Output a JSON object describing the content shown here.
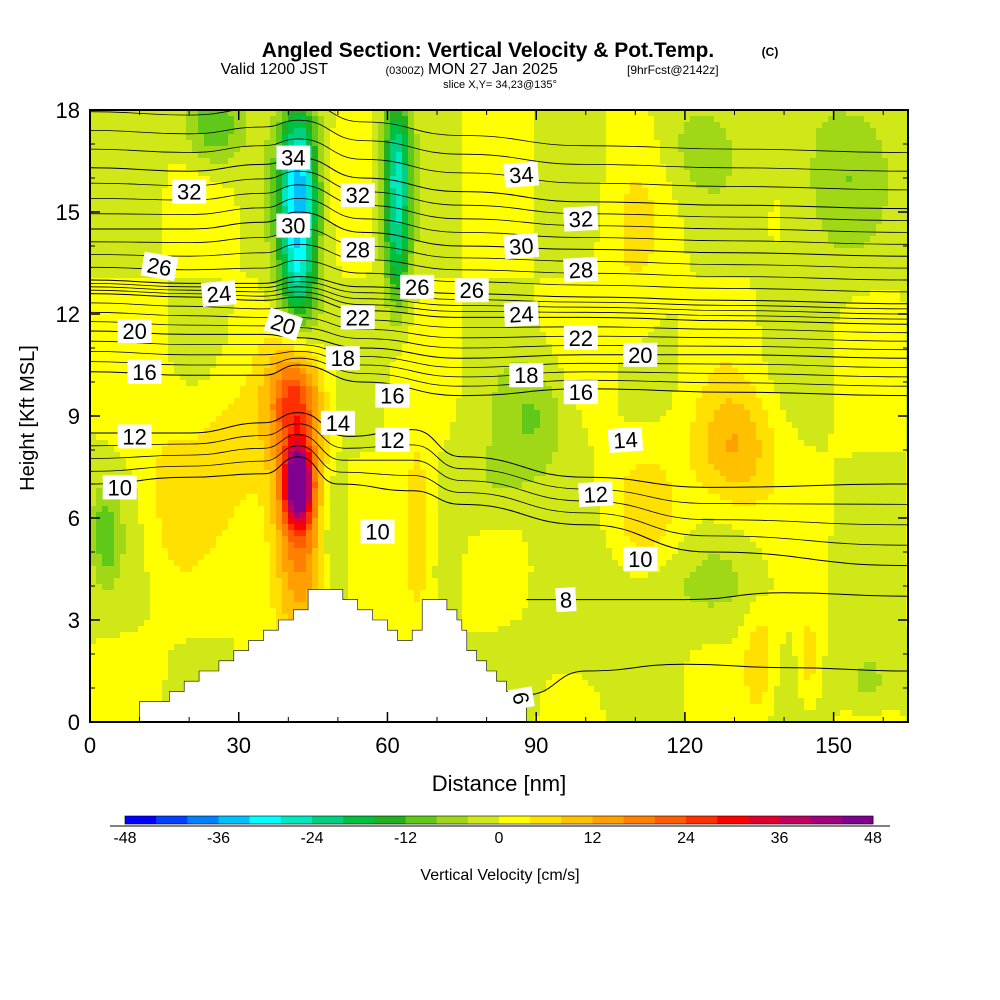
{
  "chart_data": {
    "type": "heatmap",
    "title": "Angled Section: Vertical Velocity & Pot.Temp.",
    "title_unit": "(C)",
    "subtitle": {
      "valid": "Valid 1200 JST",
      "utc": "(0300Z)",
      "date": "MON 27 Jan 2025",
      "fcst": "[9hrFcst@2142z]"
    },
    "slice_label": "slice X,Y= 34,23@135°",
    "xlabel": "Distance [nm]",
    "ylabel": "Height [Kft MSL]",
    "xlim": [
      0,
      165
    ],
    "ylim": [
      0,
      18
    ],
    "x_ticks": [
      "0",
      "30",
      "60",
      "90",
      "120",
      "150"
    ],
    "y_ticks": [
      "0",
      "3",
      "6",
      "9",
      "12",
      "15",
      "18"
    ],
    "colorbar": {
      "label": "Vertical Velocity [cm/s]",
      "ticks": [
        "-48",
        "-36",
        "-24",
        "-12",
        "0",
        "12",
        "24",
        "36",
        "48"
      ],
      "range": [
        -48,
        48
      ],
      "colors": [
        "#0000ff",
        "#0040ff",
        "#0080ff",
        "#00c0ff",
        "#00ffff",
        "#00e8c0",
        "#00d080",
        "#00c040",
        "#20b020",
        "#60c818",
        "#a0d818",
        "#d0e818",
        "#ffff00",
        "#ffe000",
        "#ffc000",
        "#ffa000",
        "#ff8000",
        "#ff5c00",
        "#ff3000",
        "#ff0000",
        "#e00030",
        "#c00060",
        "#a00080",
        "#800090"
      ]
    },
    "terrain_nm_kft": [
      [
        10,
        0.6
      ],
      [
        16,
        0.6
      ],
      [
        16,
        0.9
      ],
      [
        19,
        0.9
      ],
      [
        19,
        1.2
      ],
      [
        22,
        1.2
      ],
      [
        22,
        1.5
      ],
      [
        26,
        1.5
      ],
      [
        26,
        1.8
      ],
      [
        29,
        1.8
      ],
      [
        29,
        2.1
      ],
      [
        32,
        2.1
      ],
      [
        32,
        2.4
      ],
      [
        35,
        2.4
      ],
      [
        35,
        2.7
      ],
      [
        38,
        2.7
      ],
      [
        38,
        3.0
      ],
      [
        41,
        3.0
      ],
      [
        41,
        3.3
      ],
      [
        44,
        3.3
      ],
      [
        44,
        3.9
      ],
      [
        51,
        3.9
      ],
      [
        51,
        3.6
      ],
      [
        54,
        3.6
      ],
      [
        54,
        3.3
      ],
      [
        57,
        3.3
      ],
      [
        57,
        3.0
      ],
      [
        60,
        3.0
      ],
      [
        60,
        2.7
      ],
      [
        62,
        2.7
      ],
      [
        62,
        2.4
      ],
      [
        65,
        2.4
      ],
      [
        65,
        2.7
      ],
      [
        67,
        2.7
      ],
      [
        67,
        3.6
      ],
      [
        72,
        3.6
      ],
      [
        72,
        3.3
      ],
      [
        74,
        3.3
      ],
      [
        74,
        3.0
      ],
      [
        75,
        3.0
      ],
      [
        75,
        2.7
      ],
      [
        76,
        2.7
      ],
      [
        76,
        2.1
      ],
      [
        78,
        2.1
      ],
      [
        78,
        1.8
      ],
      [
        80,
        1.8
      ],
      [
        80,
        1.5
      ],
      [
        82,
        1.5
      ],
      [
        82,
        1.2
      ],
      [
        84,
        1.2
      ],
      [
        84,
        0.9
      ],
      [
        86,
        0.9
      ],
      [
        86,
        0.6
      ],
      [
        88,
        0.6
      ],
      [
        88,
        0
      ]
    ],
    "vv_features": [
      {
        "x": 42,
        "y": 7.0,
        "v": 48,
        "sx": 2.4,
        "sy": 1.0
      },
      {
        "x": 42,
        "y": 6.2,
        "v": 22,
        "sx": 5.5,
        "sy": 3.6
      },
      {
        "x": 41,
        "y": 9.5,
        "v": 16,
        "sx": 5,
        "sy": 1.4
      },
      {
        "x": 28,
        "y": 8.0,
        "v": 6,
        "sx": 9,
        "sy": 2.5
      },
      {
        "x": 16,
        "y": 6.5,
        "v": 5,
        "sx": 6,
        "sy": 2.5
      },
      {
        "x": 66,
        "y": 5.5,
        "v": 10,
        "sx": 3,
        "sy": 2.5
      },
      {
        "x": 42,
        "y": 15.8,
        "v": -32,
        "sx": 4.0,
        "sy": 2.4
      },
      {
        "x": 42,
        "y": 13.0,
        "v": -18,
        "sx": 4.0,
        "sy": 1.8
      },
      {
        "x": 62,
        "y": 16.3,
        "v": -24,
        "sx": 2.8,
        "sy": 2.2
      },
      {
        "x": 62,
        "y": 13.6,
        "v": -14,
        "sx": 2.6,
        "sy": 1.8
      },
      {
        "x": 25,
        "y": 17.5,
        "v": -12,
        "sx": 6,
        "sy": 1.2
      },
      {
        "x": 3,
        "y": 5.5,
        "v": -10,
        "sx": 3,
        "sy": 1.5
      },
      {
        "x": 49,
        "y": 5.5,
        "v": -10,
        "sx": 3,
        "sy": 2
      },
      {
        "x": 90,
        "y": 9.0,
        "v": -8,
        "sx": 7,
        "sy": 1.6
      },
      {
        "x": 82,
        "y": 7.0,
        "v": -5,
        "sx": 8,
        "sy": 1.5
      },
      {
        "x": 130,
        "y": 8.0,
        "v": 12,
        "sx": 8,
        "sy": 1.8
      },
      {
        "x": 112,
        "y": 6.5,
        "v": 5,
        "sx": 7,
        "sy": 1.8
      },
      {
        "x": 120,
        "y": 4.0,
        "v": -4,
        "sx": 18,
        "sy": 1.2
      },
      {
        "x": 150,
        "y": 16.0,
        "v": -7,
        "sx": 10,
        "sy": 2.5
      },
      {
        "x": 122,
        "y": 17.0,
        "v": -5,
        "sx": 8,
        "sy": 1.5
      },
      {
        "x": 135,
        "y": 1.8,
        "v": 8,
        "sx": 3,
        "sy": 1.5
      },
      {
        "x": 145,
        "y": 1.8,
        "v": 7,
        "sx": 2,
        "sy": 1.4
      },
      {
        "x": 157,
        "y": 1.2,
        "v": -7,
        "sx": 5,
        "sy": 1.0
      },
      {
        "x": 110,
        "y": 13.5,
        "v": 4,
        "sx": 6,
        "sy": 3
      },
      {
        "x": 100,
        "y": 2.0,
        "v": -2,
        "sx": 12,
        "sy": 1.5
      }
    ],
    "theta_contours": [
      {
        "label": "32",
        "xy": [
          [
            0,
            16.3
          ],
          [
            20,
            16.2
          ],
          [
            35,
            16.4
          ],
          [
            42,
            16.6
          ],
          [
            55,
            16.0
          ],
          [
            75,
            15.6
          ],
          [
            100,
            15.3
          ],
          [
            130,
            15.2
          ],
          [
            165,
            15.1
          ]
        ]
      },
      {
        "label": "30",
        "xy": [
          [
            0,
            14.5
          ],
          [
            20,
            14.5
          ],
          [
            35,
            14.7
          ],
          [
            42,
            15.0
          ],
          [
            55,
            14.4
          ],
          [
            75,
            14.0
          ],
          [
            100,
            13.9
          ],
          [
            130,
            13.8
          ],
          [
            165,
            13.7
          ]
        ]
      },
      {
        "label": "26",
        "xy": [
          [
            0,
            13.0
          ],
          [
            20,
            12.9
          ],
          [
            35,
            12.9
          ],
          [
            42,
            13.1
          ],
          [
            55,
            12.8
          ],
          [
            75,
            12.6
          ],
          [
            100,
            12.5
          ],
          [
            130,
            12.4
          ],
          [
            165,
            12.3
          ]
        ]
      },
      {
        "label": "24",
        "xy": [
          [
            0,
            12.6
          ],
          [
            20,
            12.5
          ],
          [
            35,
            12.4
          ],
          [
            42,
            12.5
          ],
          [
            55,
            12.1
          ],
          [
            75,
            11.9
          ],
          [
            100,
            11.9
          ],
          [
            130,
            11.8
          ],
          [
            165,
            11.7
          ]
        ]
      },
      {
        "label": "20",
        "xy": [
          [
            0,
            11.5
          ],
          [
            20,
            11.4
          ],
          [
            35,
            11.4
          ],
          [
            42,
            11.3
          ],
          [
            55,
            11.0
          ],
          [
            75,
            10.7
          ],
          [
            100,
            10.8
          ],
          [
            130,
            10.8
          ],
          [
            165,
            10.7
          ]
        ]
      },
      {
        "label": "16",
        "xy": [
          [
            0,
            10.3
          ],
          [
            20,
            10.2
          ],
          [
            35,
            10.2
          ],
          [
            42,
            10.5
          ],
          [
            55,
            10.0
          ],
          [
            75,
            9.6
          ],
          [
            100,
            9.8
          ],
          [
            130,
            9.7
          ],
          [
            165,
            9.6
          ]
        ]
      },
      {
        "label": "12",
        "xy": [
          [
            0,
            8.5
          ],
          [
            20,
            8.5
          ],
          [
            35,
            8.8
          ],
          [
            42,
            9.1
          ],
          [
            52,
            8.4
          ],
          [
            65,
            8.6
          ],
          [
            75,
            7.8
          ],
          [
            100,
            7.2
          ],
          [
            125,
            6.9
          ],
          [
            165,
            7.0
          ]
        ]
      },
      {
        "label": "10",
        "xy": [
          [
            0,
            7.0
          ],
          [
            20,
            7.2
          ],
          [
            35,
            7.3
          ],
          [
            42,
            7.8
          ],
          [
            50,
            7.0
          ],
          [
            65,
            6.8
          ],
          [
            75,
            6.4
          ],
          [
            100,
            5.8
          ],
          [
            125,
            5.0
          ],
          [
            165,
            4.6
          ]
        ]
      },
      {
        "label": "8",
        "xy": [
          [
            88,
            3.6
          ],
          [
            100,
            3.6
          ],
          [
            120,
            3.6
          ],
          [
            140,
            3.8
          ],
          [
            165,
            3.7
          ]
        ]
      },
      {
        "label": "6",
        "xy": [
          [
            88,
            0.8
          ],
          [
            100,
            1.5
          ],
          [
            120,
            1.7
          ],
          [
            140,
            1.6
          ],
          [
            165,
            1.5
          ]
        ]
      }
    ],
    "theta_labels": [
      {
        "text": "34",
        "x": 41,
        "y": 16.6,
        "rot": 0
      },
      {
        "text": "32",
        "x": 20,
        "y": 15.6,
        "rot": 0
      },
      {
        "text": "32",
        "x": 54,
        "y": 15.5,
        "rot": 0
      },
      {
        "text": "34",
        "x": 87,
        "y": 16.1,
        "rot": -4
      },
      {
        "text": "32",
        "x": 99,
        "y": 14.8,
        "rot": -3
      },
      {
        "text": "30",
        "x": 41,
        "y": 14.6,
        "rot": 0
      },
      {
        "text": "28",
        "x": 54,
        "y": 13.9,
        "rot": 0
      },
      {
        "text": "30",
        "x": 87,
        "y": 14.0,
        "rot": -4
      },
      {
        "text": "28",
        "x": 99,
        "y": 13.3,
        "rot": -3
      },
      {
        "text": "26",
        "x": 14,
        "y": 13.4,
        "rot": 10
      },
      {
        "text": "24",
        "x": 26,
        "y": 12.6,
        "rot": -5
      },
      {
        "text": "26",
        "x": 66,
        "y": 12.8,
        "rot": 0
      },
      {
        "text": "26",
        "x": 77,
        "y": 12.7,
        "rot": 0
      },
      {
        "text": "24",
        "x": 87,
        "y": 12.0,
        "rot": -3
      },
      {
        "text": "22",
        "x": 99,
        "y": 11.3,
        "rot": 0
      },
      {
        "text": "20",
        "x": 9,
        "y": 11.5,
        "rot": 0
      },
      {
        "text": "20",
        "x": 39,
        "y": 11.7,
        "rot": 18
      },
      {
        "text": "22",
        "x": 54,
        "y": 11.9,
        "rot": 0
      },
      {
        "text": "20",
        "x": 111,
        "y": 10.8,
        "rot": 0
      },
      {
        "text": "16",
        "x": 11,
        "y": 10.3,
        "rot": 0
      },
      {
        "text": "18",
        "x": 51,
        "y": 10.7,
        "rot": 0
      },
      {
        "text": "18",
        "x": 88,
        "y": 10.2,
        "rot": 0
      },
      {
        "text": "16",
        "x": 61,
        "y": 9.6,
        "rot": 0
      },
      {
        "text": "16",
        "x": 99,
        "y": 9.7,
        "rot": 0
      },
      {
        "text": "12",
        "x": 9,
        "y": 8.4,
        "rot": 0
      },
      {
        "text": "14",
        "x": 50,
        "y": 8.8,
        "rot": 0
      },
      {
        "text": "12",
        "x": 61,
        "y": 8.3,
        "rot": 0
      },
      {
        "text": "14",
        "x": 108,
        "y": 8.3,
        "rot": -4
      },
      {
        "text": "10",
        "x": 6,
        "y": 6.9,
        "rot": 0
      },
      {
        "text": "12",
        "x": 102,
        "y": 6.7,
        "rot": -3
      },
      {
        "text": "10",
        "x": 58,
        "y": 5.6,
        "rot": 0
      },
      {
        "text": "10",
        "x": 111,
        "y": 4.8,
        "rot": 0
      },
      {
        "text": "8",
        "x": 96,
        "y": 3.6,
        "rot": -3
      },
      {
        "text": "6",
        "x": 87,
        "y": 0.7,
        "rot": 80
      }
    ]
  }
}
